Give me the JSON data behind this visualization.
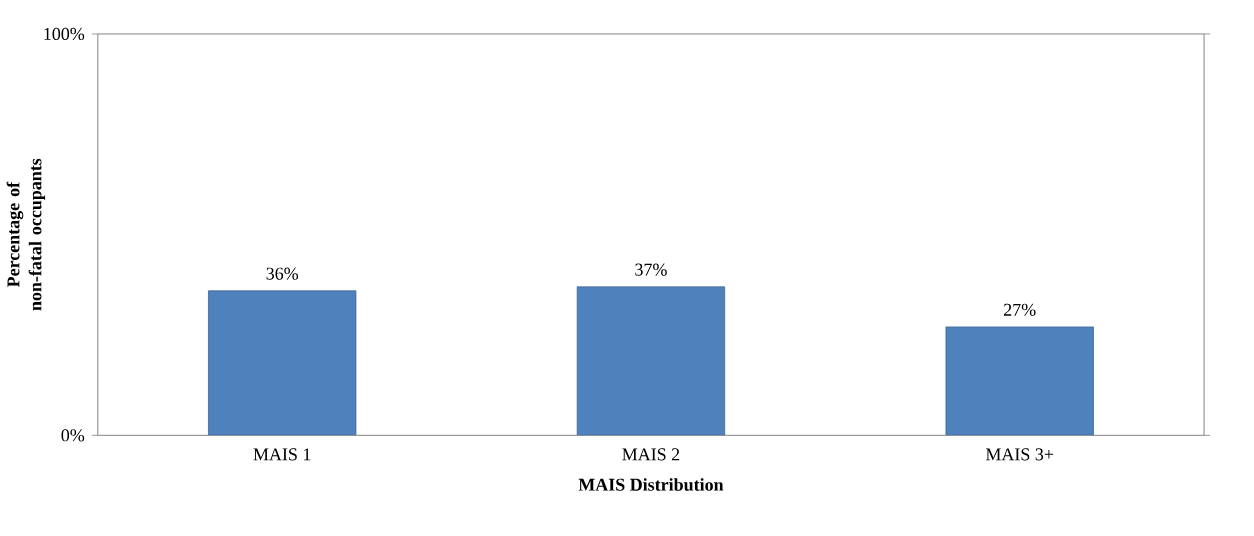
{
  "chart_data": {
    "type": "bar",
    "xlabel": "MAIS Distribution",
    "ylabel": "Percentage of non-fatal occupants",
    "categories": [
      "MAIS 1",
      "MAIS 2",
      "MAIS 3+"
    ],
    "values": [
      36,
      37,
      27
    ],
    "value_labels": [
      "36%",
      "37%",
      "27%"
    ],
    "color": "#4f81bd",
    "ylim": [
      0,
      100
    ],
    "yticks": [
      {
        "value": 0,
        "label": "0%"
      },
      {
        "value": 100,
        "label": "100%"
      }
    ],
    "grid": false
  }
}
